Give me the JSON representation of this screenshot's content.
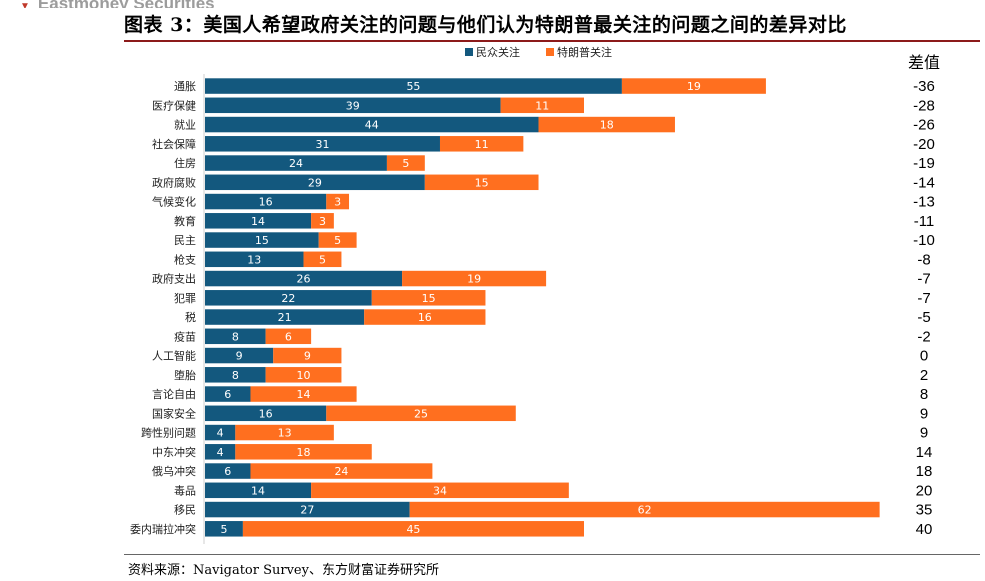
{
  "header": {
    "brand_fragment": "Eastmoney Securities",
    "figure_title": "图表 3：美国人希望政府关注的问题与他们认为特朗普最关注的问题之间的差异对比",
    "source": "资料来源：Navigator Survey、东方财富证券研究所"
  },
  "colors": {
    "public": "#13587e",
    "trump": "#ff6f1f",
    "title_rule": "#8c1a1a"
  },
  "chart_data": {
    "type": "bar",
    "orientation": "horizontal",
    "stacked": true,
    "legend_position": "top",
    "categories": [
      "通胀",
      "医疗保健",
      "就业",
      "社会保障",
      "住房",
      "政府腐败",
      "气候变化",
      "教育",
      "民主",
      "枪支",
      "政府支出",
      "犯罪",
      "税",
      "疫苗",
      "人工智能",
      "堕胎",
      "言论自由",
      "国家安全",
      "跨性别问题",
      "中东冲突",
      "俄乌冲突",
      "毒品",
      "移民",
      "委内瑞拉冲突"
    ],
    "series": [
      {
        "name": "民众关注",
        "values": [
          55,
          39,
          44,
          31,
          24,
          29,
          16,
          14,
          15,
          13,
          26,
          22,
          21,
          8,
          9,
          8,
          6,
          16,
          4,
          4,
          6,
          14,
          27,
          5
        ]
      },
      {
        "name": "特朗普关注",
        "values": [
          19,
          11,
          18,
          11,
          5,
          15,
          3,
          3,
          5,
          5,
          19,
          15,
          16,
          6,
          9,
          10,
          14,
          25,
          13,
          18,
          24,
          34,
          62,
          45
        ]
      }
    ],
    "difference_header": "差值",
    "difference": [
      "-36",
      "-28",
      "-26",
      "-20",
      "-19",
      "-14",
      "-13",
      "-11",
      "-10",
      "-8",
      "-7",
      "-7",
      "-5",
      "-2",
      "0",
      "2",
      "8",
      "9",
      "9",
      "14",
      "18",
      "20",
      "35",
      "40"
    ],
    "xlim": [
      0,
      90
    ],
    "grid": false
  }
}
